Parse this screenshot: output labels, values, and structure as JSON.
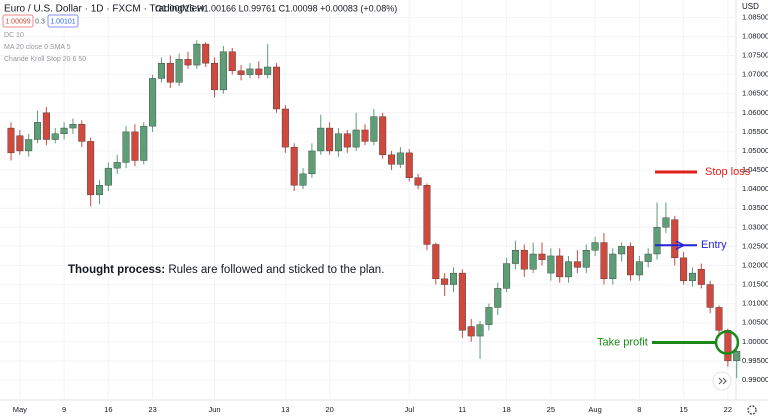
{
  "chart_data": {
    "type": "candlestick",
    "title": "Euro / U.S. Dollar · 1D · FXCM · TradingView",
    "ohlc_legend": "O1.00015 H1.00166 L0.99761 C1.00098 +0.00083 (+0.08%)",
    "price_boxes": [
      "1.00099",
      "0.3",
      "1.00101"
    ],
    "indicators": [
      "DC 10",
      "MA 20 close 0 SMA 5",
      "Chande Kroll Stop 20 6 50"
    ],
    "currency": "USD",
    "up_color": "#5d9e77",
    "down_color": "#d0493f",
    "grid": true,
    "categories": [
      null,
      "May",
      null,
      null,
      null,
      null,
      "9",
      null,
      null,
      null,
      null,
      "16",
      null,
      null,
      null,
      null,
      "23",
      null,
      null,
      null,
      null,
      null,
      null,
      "Jun",
      null,
      null,
      null,
      null,
      null,
      null,
      null,
      "13",
      null,
      null,
      null,
      null,
      "20",
      null,
      null,
      null,
      null,
      null,
      null,
      null,
      null,
      "Jul",
      null,
      null,
      null,
      null,
      null,
      "11",
      null,
      null,
      null,
      null,
      "18",
      null,
      null,
      null,
      null,
      "25",
      null,
      null,
      null,
      null,
      "Aug",
      null,
      null,
      null,
      null,
      "8",
      null,
      null,
      null,
      null,
      "15",
      null,
      null,
      null,
      null,
      "22",
      null
    ],
    "ohlc": [
      [
        1.056,
        1.0575,
        1.0475,
        1.0495
      ],
      [
        1.054,
        1.0555,
        1.049,
        1.05
      ],
      [
        1.05,
        1.0545,
        1.0485,
        1.053
      ],
      [
        1.053,
        1.0605,
        1.052,
        1.0575
      ],
      [
        1.06,
        1.0615,
        1.0515,
        1.053
      ],
      [
        1.053,
        1.056,
        1.052,
        1.0545
      ],
      [
        1.0545,
        1.0575,
        1.053,
        1.056
      ],
      [
        1.056,
        1.0585,
        1.0545,
        1.057
      ],
      [
        1.057,
        1.058,
        1.051,
        1.0525
      ],
      [
        1.0525,
        1.0535,
        1.0355,
        1.0385
      ],
      [
        1.0385,
        1.0425,
        1.036,
        1.041
      ],
      [
        1.041,
        1.047,
        1.0395,
        1.0455
      ],
      [
        1.0455,
        1.049,
        1.044,
        1.047
      ],
      [
        1.047,
        1.0565,
        1.0455,
        1.055
      ],
      [
        1.055,
        1.057,
        1.046,
        1.0475
      ],
      [
        1.0475,
        1.0575,
        1.0465,
        1.0565
      ],
      [
        1.0565,
        1.07,
        1.055,
        1.069
      ],
      [
        1.069,
        1.0745,
        1.068,
        1.073
      ],
      [
        1.073,
        1.075,
        1.0665,
        1.068
      ],
      [
        1.068,
        1.0755,
        1.067,
        1.074
      ],
      [
        1.074,
        1.076,
        1.0715,
        1.0725
      ],
      [
        1.0725,
        1.079,
        1.0715,
        1.078
      ],
      [
        1.078,
        1.0785,
        1.072,
        1.073
      ],
      [
        1.073,
        1.0745,
        1.064,
        1.066
      ],
      [
        1.066,
        1.0775,
        1.065,
        1.076
      ],
      [
        1.076,
        1.077,
        1.07,
        1.071
      ],
      [
        1.071,
        1.0725,
        1.0685,
        1.07
      ],
      [
        1.07,
        1.073,
        1.069,
        1.0715
      ],
      [
        1.0715,
        1.0735,
        1.069,
        1.07
      ],
      [
        1.07,
        1.078,
        1.069,
        1.072
      ],
      [
        1.072,
        1.073,
        1.06,
        1.061
      ],
      [
        1.061,
        1.062,
        1.0495,
        1.051
      ],
      [
        1.051,
        1.052,
        1.0395,
        1.041
      ],
      [
        1.041,
        1.0455,
        1.04,
        1.044
      ],
      [
        1.044,
        1.052,
        1.043,
        1.05
      ],
      [
        1.05,
        1.0595,
        1.049,
        1.056
      ],
      [
        1.056,
        1.0575,
        1.049,
        1.05
      ],
      [
        1.05,
        1.056,
        1.0485,
        1.0545
      ],
      [
        1.0545,
        1.0555,
        1.0495,
        1.051
      ],
      [
        1.051,
        1.06,
        1.05,
        1.0555
      ],
      [
        1.0555,
        1.057,
        1.0515,
        1.0525
      ],
      [
        1.0525,
        1.061,
        1.0515,
        1.059
      ],
      [
        1.059,
        1.06,
        1.048,
        1.049
      ],
      [
        1.049,
        1.05,
        1.045,
        1.0465
      ],
      [
        1.0465,
        1.051,
        1.0455,
        1.0495
      ],
      [
        1.0495,
        1.0505,
        1.042,
        1.043
      ],
      [
        1.043,
        1.044,
        1.04,
        1.041
      ],
      [
        1.041,
        1.0415,
        1.024,
        1.0255
      ],
      [
        1.0255,
        1.026,
        1.015,
        1.0165
      ],
      [
        1.0165,
        1.018,
        1.012,
        1.015
      ],
      [
        1.015,
        1.0195,
        1.013,
        1.018
      ],
      [
        1.018,
        1.019,
        1.001,
        1.003
      ],
      [
        1.004,
        1.006,
        1.0,
        1.0015
      ],
      [
        1.0015,
        1.0055,
        0.9955,
        1.0045
      ],
      [
        1.0045,
        1.01,
        1.003,
        1.009
      ],
      [
        1.009,
        1.0155,
        1.007,
        1.014
      ],
      [
        1.014,
        1.022,
        1.013,
        1.0205
      ],
      [
        1.0205,
        1.0265,
        1.019,
        1.024
      ],
      [
        1.024,
        1.0255,
        1.017,
        1.019
      ],
      [
        1.019,
        1.026,
        1.018,
        1.023
      ],
      [
        1.023,
        1.026,
        1.02,
        1.0215
      ],
      [
        1.018,
        1.0245,
        1.016,
        1.0225
      ],
      [
        1.0225,
        1.0245,
        1.0155,
        1.017
      ],
      [
        1.017,
        1.0225,
        1.0155,
        1.021
      ],
      [
        1.021,
        1.024,
        1.018,
        1.0195
      ],
      [
        1.0195,
        1.0255,
        1.018,
        1.024
      ],
      [
        1.024,
        1.0275,
        1.0225,
        1.026
      ],
      [
        1.026,
        1.0285,
        1.015,
        1.0165
      ],
      [
        1.0165,
        1.0245,
        1.015,
        1.023
      ],
      [
        1.023,
        1.026,
        1.021,
        1.025
      ],
      [
        1.025,
        1.026,
        1.016,
        1.0175
      ],
      [
        1.0175,
        1.0225,
        1.016,
        1.021
      ],
      [
        1.021,
        1.0245,
        1.0195,
        1.023
      ],
      [
        1.023,
        1.0365,
        1.0215,
        1.03
      ],
      [
        1.03,
        1.0365,
        1.0285,
        1.0325
      ],
      [
        1.032,
        1.033,
        1.02,
        1.022
      ],
      [
        1.022,
        1.0235,
        1.015,
        1.016
      ],
      [
        1.016,
        1.0195,
        1.0145,
        1.018
      ],
      [
        1.019,
        1.0205,
        1.014,
        1.015
      ],
      [
        1.015,
        1.016,
        1.0075,
        1.009
      ],
      [
        1.009,
        1.0095,
        1.002,
        1.003
      ],
      [
        1.003,
        1.0035,
        0.9935,
        0.995
      ],
      [
        0.995,
        0.9985,
        0.9905,
        0.9975
      ]
    ],
    "ylim": [
      0.98475,
      1.08955
    ],
    "yticks": [
      {
        "value": 1.085,
        "label": "1.08500"
      },
      {
        "value": 1.08,
        "label": "1.08000"
      },
      {
        "value": 1.075,
        "label": "1.07500"
      },
      {
        "value": 1.07,
        "label": "1.07000"
      },
      {
        "value": 1.065,
        "label": "1.06500"
      },
      {
        "value": 1.06,
        "label": "1.06000"
      },
      {
        "value": 1.055,
        "label": "1.05500"
      },
      {
        "value": 1.05,
        "label": "1.05000"
      },
      {
        "value": 1.045,
        "label": "1.04500"
      },
      {
        "value": 1.04,
        "label": "1.04000"
      },
      {
        "value": 1.035,
        "label": "1.03500"
      },
      {
        "value": 1.03,
        "label": "1.03000"
      },
      {
        "value": 1.025,
        "label": "1.02500"
      },
      {
        "value": 1.02,
        "label": "1.02000"
      },
      {
        "value": 1.015,
        "label": "1.01500"
      },
      {
        "value": 1.01,
        "label": "1.01000"
      },
      {
        "value": 1.005,
        "label": "1.00500"
      },
      {
        "value": 1.0,
        "label": "1.00000"
      },
      {
        "value": 0.995,
        "label": "0.99500"
      },
      {
        "value": 0.99,
        "label": "0.99000"
      }
    ],
    "levels": [
      {
        "label": "Stop loss",
        "value": 1.0445,
        "color": "#e0201b"
      },
      {
        "label": "Entry",
        "value": 1.0253,
        "color": "#2323d8"
      },
      {
        "label": "Take profit",
        "value": 0.9998,
        "color": "#1b8a1b"
      }
    ],
    "note_bold": "Thought process:",
    "note_text": " Rules are followed and sticked to the plan."
  }
}
